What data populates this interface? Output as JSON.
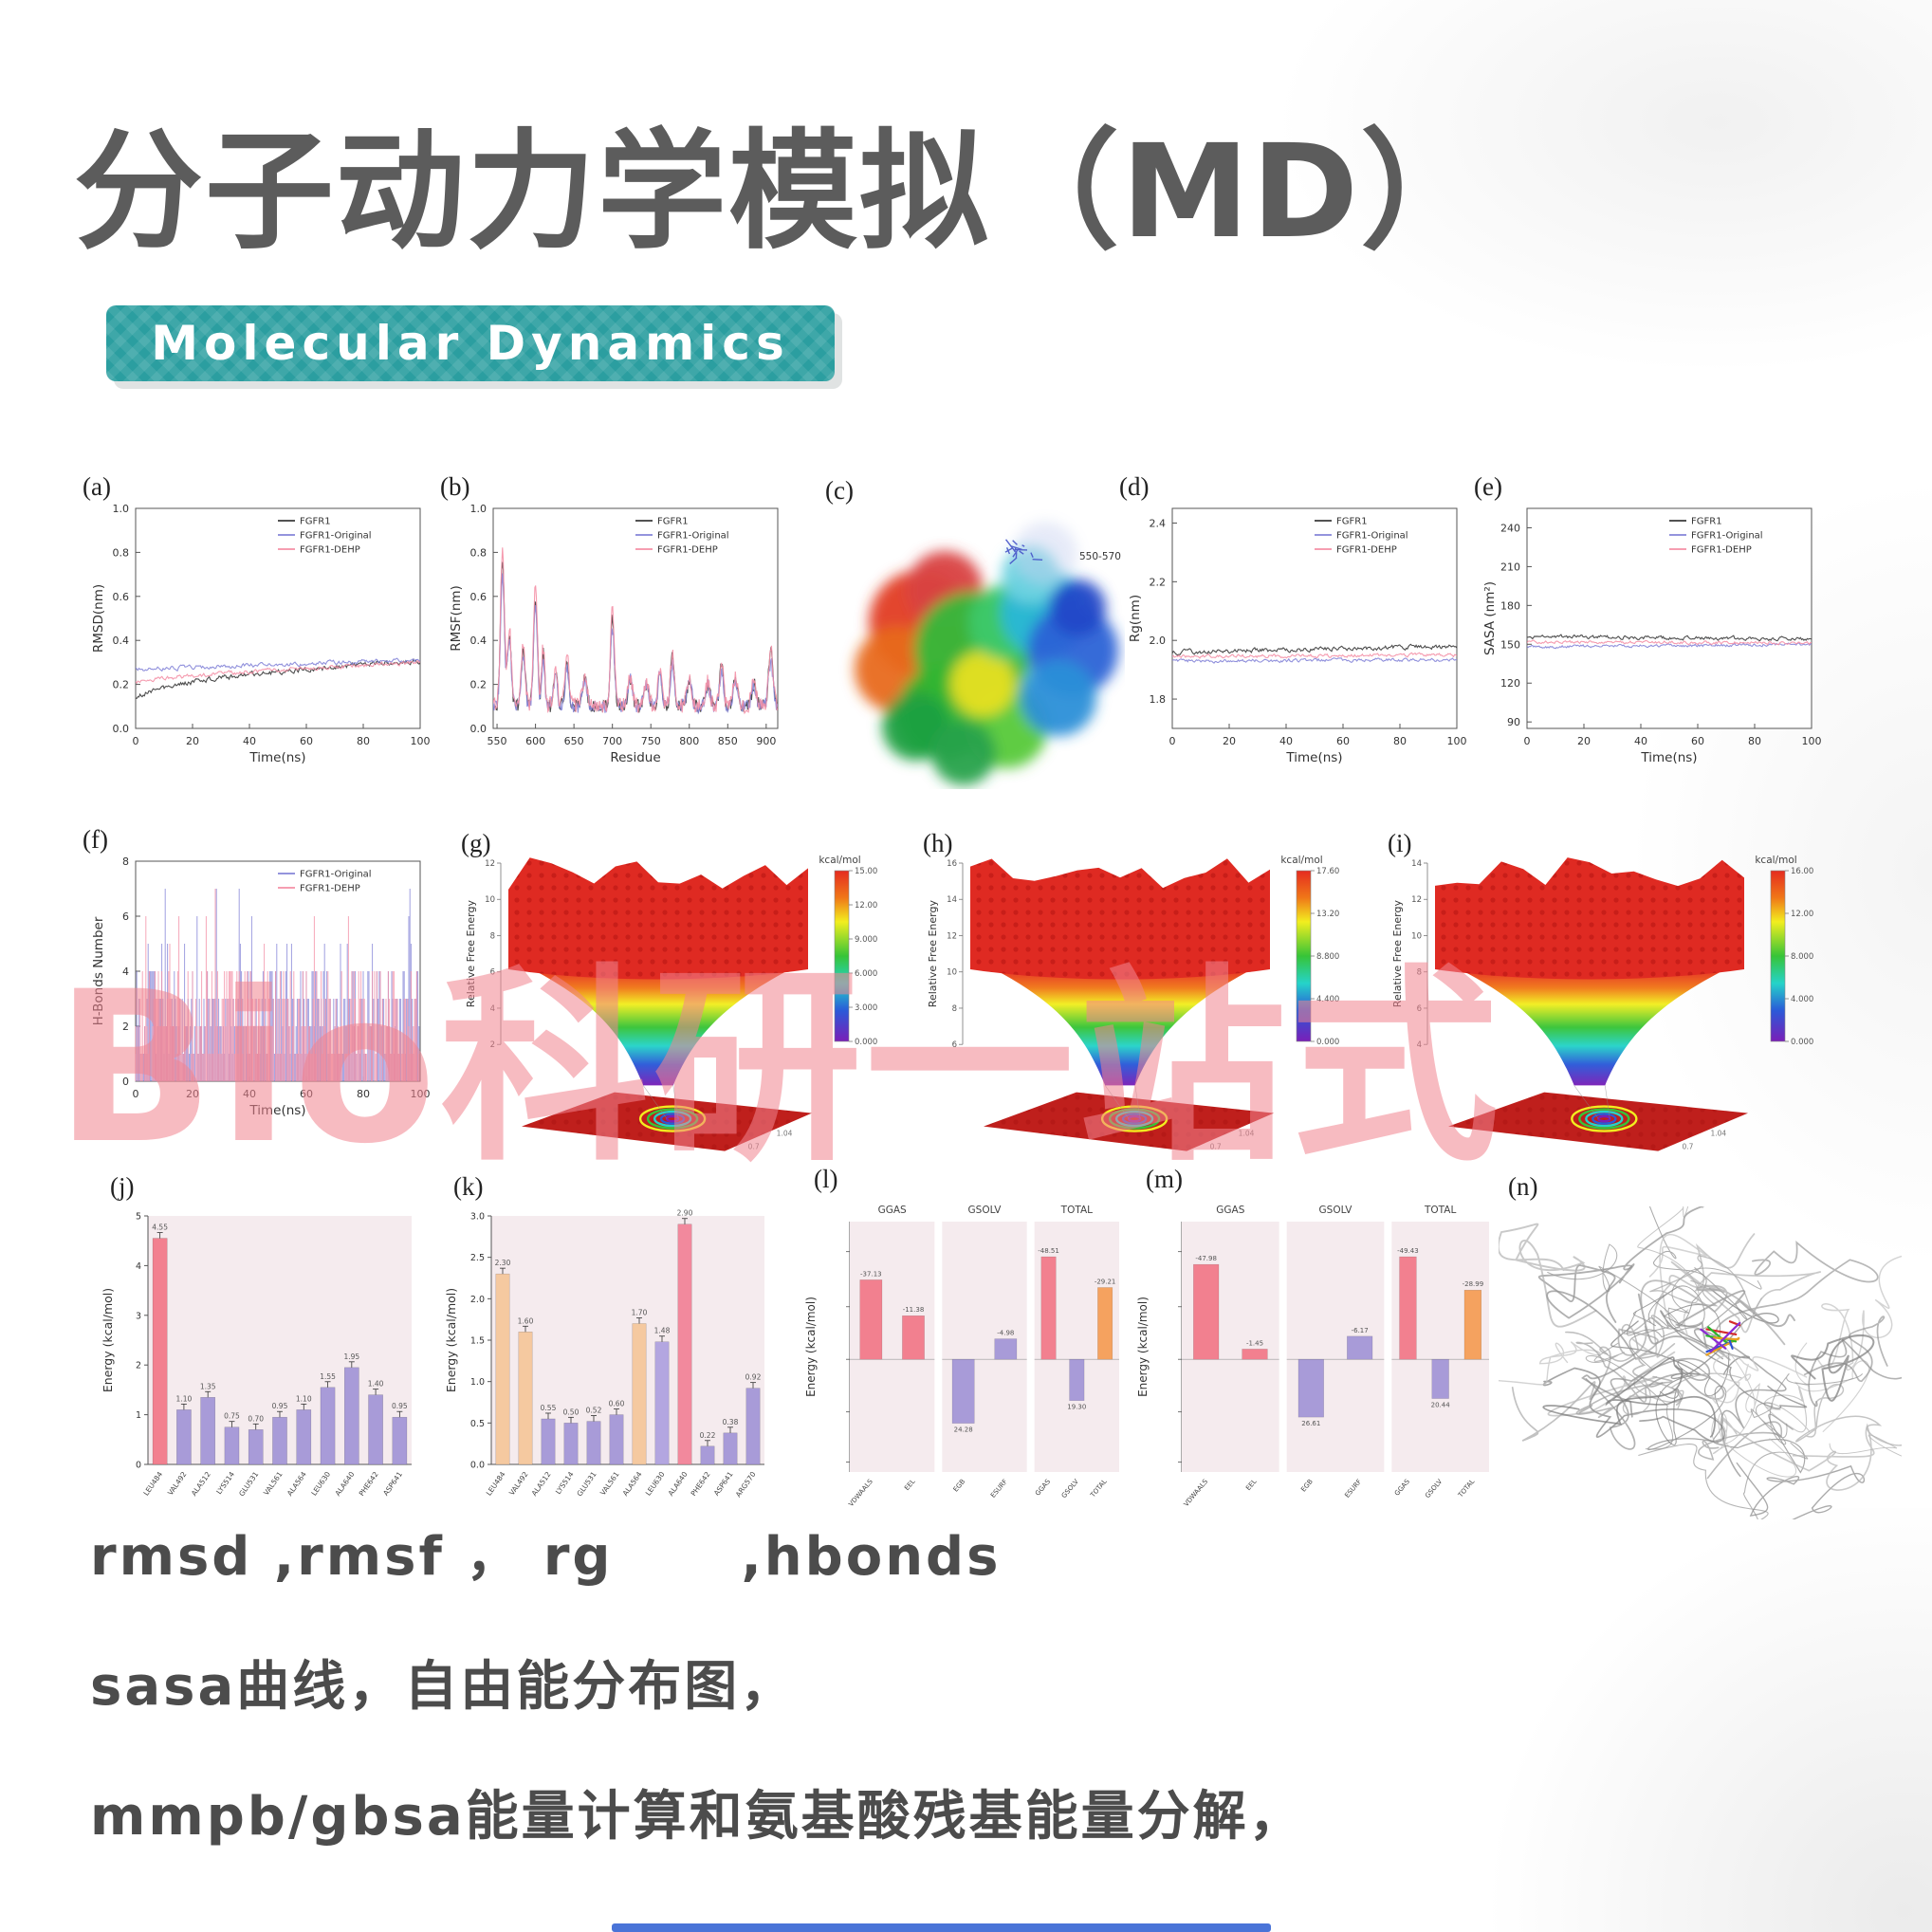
{
  "page": {
    "title": "分子动力学模拟（MD）",
    "badge": "Molecular Dynamics",
    "watermark": "Bio科研一站式",
    "footer_lines": [
      "rmsd ,rmsf ， rg      ,hbonds",
      "sasa曲线，自由能分布图，",
      "mmpb/gbsa能量计算和氨基酸残基能量分解，"
    ]
  },
  "colors": {
    "badge_teal": "#2b9ea0",
    "title_gray": "#5c5c5c",
    "watermark_pink": "#f28490",
    "fgfr1_black": "#3a3a3a",
    "fgfr1_original_blue": "#8585d8",
    "fgfr1_dehp_pink": "#f490a6",
    "bar_pink": "#f2808f",
    "bar_purple": "#a89bd8",
    "bar_peach": "#f5c9a0",
    "bar_orange": "#f5a25f",
    "panel_pink_bg": "#f5ebee"
  },
  "chart_data": [
    {
      "tag": "(a)",
      "type": "line",
      "xlabel": "Time(ns)",
      "ylabel": "RMSD(nm)",
      "xlim": [
        0,
        100
      ],
      "ylim": [
        0,
        1
      ],
      "xticks": [
        0,
        20,
        40,
        60,
        80,
        100
      ],
      "yticks": [
        0,
        0.2,
        0.4,
        0.6,
        0.8,
        1
      ],
      "ydec": 1,
      "legend": [
        {
          "name": "FGFR1",
          "color": "#3a3a3a"
        },
        {
          "name": "FGFR1-Original",
          "color": "#8585d8"
        },
        {
          "name": "FGFR1-DEHP",
          "color": "#f490a6"
        }
      ],
      "series": [
        {
          "name": "FGFR1",
          "color": "#3a3a3a",
          "start": 0.13,
          "end": 0.31,
          "pow": 0.5,
          "noise": 0.022,
          "seed": 7
        },
        {
          "name": "FGFR1-Original",
          "color": "#8585d8",
          "start": 0.27,
          "end": 0.31,
          "pow": 1,
          "noise": 0.018,
          "seed": 19
        },
        {
          "name": "FGFR1-DEHP",
          "color": "#f490a6",
          "start": 0.21,
          "end": 0.3,
          "pow": 0.7,
          "noise": 0.018,
          "seed": 31
        }
      ]
    },
    {
      "tag": "(b)",
      "type": "line",
      "xlabel": "Residue",
      "ylabel": "RMSF(nm)",
      "xlim": [
        545,
        915
      ],
      "ylim": [
        0,
        1
      ],
      "xticks": [
        550,
        600,
        650,
        700,
        750,
        800,
        850,
        900
      ],
      "yticks": [
        0,
        0.2,
        0.4,
        0.6,
        0.8,
        1
      ],
      "ydec": 1,
      "n": 370,
      "legend": [
        {
          "name": "FGFR1",
          "color": "#3a3a3a"
        },
        {
          "name": "FGFR1-Original",
          "color": "#8585d8"
        },
        {
          "name": "FGFR1-DEHP",
          "color": "#f490a6"
        }
      ],
      "series": [
        {
          "name": "FGFR1",
          "color": "#3a3a3a",
          "start": 0.1,
          "end": 0.1,
          "noise": 0.03,
          "seed": 3,
          "sharp": true,
          "peaks": [
            {
              "x": 557,
              "h": 0.66,
              "w": 2.5
            },
            {
              "x": 566,
              "h": 0.32,
              "w": 2.5
            },
            {
              "x": 584,
              "h": 0.26,
              "w": 2.5
            },
            {
              "x": 600,
              "h": 0.5,
              "w": 2.5
            },
            {
              "x": 610,
              "h": 0.24,
              "w": 2
            },
            {
              "x": 626,
              "h": 0.16,
              "w": 2.5
            },
            {
              "x": 641,
              "h": 0.2,
              "w": 2.5
            },
            {
              "x": 664,
              "h": 0.12,
              "w": 3
            },
            {
              "x": 700,
              "h": 0.4,
              "w": 2.5
            },
            {
              "x": 723,
              "h": 0.12,
              "w": 3
            },
            {
              "x": 744,
              "h": 0.1,
              "w": 3
            },
            {
              "x": 762,
              "h": 0.16,
              "w": 2.5
            },
            {
              "x": 778,
              "h": 0.22,
              "w": 2.5
            },
            {
              "x": 800,
              "h": 0.12,
              "w": 3
            },
            {
              "x": 824,
              "h": 0.1,
              "w": 3
            },
            {
              "x": 842,
              "h": 0.18,
              "w": 2.5
            },
            {
              "x": 860,
              "h": 0.12,
              "w": 3
            },
            {
              "x": 884,
              "h": 0.1,
              "w": 3
            },
            {
              "x": 906,
              "h": 0.24,
              "w": 3
            }
          ]
        },
        {
          "name": "FGFR1-Original",
          "color": "#8585d8",
          "start": 0.1,
          "end": 0.1,
          "noise": 0.032,
          "seed": 11,
          "sharp": true,
          "peaks": [
            {
              "x": 557,
              "h": 0.6,
              "w": 2.5
            },
            {
              "x": 566,
              "h": 0.3,
              "w": 2.5
            },
            {
              "x": 584,
              "h": 0.24,
              "w": 2.5
            },
            {
              "x": 600,
              "h": 0.46,
              "w": 2.5
            },
            {
              "x": 610,
              "h": 0.22,
              "w": 2
            },
            {
              "x": 626,
              "h": 0.14,
              "w": 2.5
            },
            {
              "x": 641,
              "h": 0.18,
              "w": 2.5
            },
            {
              "x": 664,
              "h": 0.12,
              "w": 3
            },
            {
              "x": 700,
              "h": 0.36,
              "w": 2.5
            },
            {
              "x": 723,
              "h": 0.12,
              "w": 3
            },
            {
              "x": 744,
              "h": 0.1,
              "w": 3
            },
            {
              "x": 762,
              "h": 0.15,
              "w": 2.5
            },
            {
              "x": 778,
              "h": 0.2,
              "w": 2.5
            },
            {
              "x": 800,
              "h": 0.11,
              "w": 3
            },
            {
              "x": 824,
              "h": 0.1,
              "w": 3
            },
            {
              "x": 842,
              "h": 0.16,
              "w": 2.5
            },
            {
              "x": 860,
              "h": 0.12,
              "w": 3
            },
            {
              "x": 884,
              "h": 0.1,
              "w": 3
            },
            {
              "x": 906,
              "h": 0.2,
              "w": 3
            }
          ]
        },
        {
          "name": "FGFR1-DEHP",
          "color": "#f490a6",
          "start": 0.11,
          "end": 0.1,
          "noise": 0.035,
          "seed": 23,
          "sharp": true,
          "peaks": [
            {
              "x": 557,
              "h": 0.7,
              "w": 2.5
            },
            {
              "x": 566,
              "h": 0.34,
              "w": 2.5
            },
            {
              "x": 584,
              "h": 0.28,
              "w": 2.5
            },
            {
              "x": 600,
              "h": 0.54,
              "w": 2.5
            },
            {
              "x": 610,
              "h": 0.26,
              "w": 2
            },
            {
              "x": 626,
              "h": 0.17,
              "w": 2.5
            },
            {
              "x": 641,
              "h": 0.22,
              "w": 2.5
            },
            {
              "x": 664,
              "h": 0.13,
              "w": 3
            },
            {
              "x": 700,
              "h": 0.44,
              "w": 2.5
            },
            {
              "x": 723,
              "h": 0.13,
              "w": 3
            },
            {
              "x": 744,
              "h": 0.11,
              "w": 3
            },
            {
              "x": 762,
              "h": 0.17,
              "w": 2.5
            },
            {
              "x": 778,
              "h": 0.24,
              "w": 2.5
            },
            {
              "x": 800,
              "h": 0.13,
              "w": 3
            },
            {
              "x": 824,
              "h": 0.11,
              "w": 3
            },
            {
              "x": 842,
              "h": 0.19,
              "w": 2.5
            },
            {
              "x": 860,
              "h": 0.13,
              "w": 3
            },
            {
              "x": 884,
              "h": 0.11,
              "w": 3
            },
            {
              "x": 906,
              "h": 0.26,
              "w": 3
            }
          ]
        }
      ]
    },
    {
      "tag": "(c)",
      "type": "surface",
      "annotation": "550-570"
    },
    {
      "tag": "(d)",
      "type": "line",
      "xlabel": "Time(ns)",
      "ylabel": "Rg(nm)",
      "xlim": [
        0,
        100
      ],
      "ylim": [
        1.7,
        2.45
      ],
      "xticks": [
        0,
        20,
        40,
        60,
        80,
        100
      ],
      "yticks": [
        1.8,
        2.0,
        2.2,
        2.4
      ],
      "ydec": 1,
      "legend": [
        {
          "name": "FGFR1",
          "color": "#3a3a3a"
        },
        {
          "name": "FGFR1-Original",
          "color": "#8585d8"
        },
        {
          "name": "FGFR1-DEHP",
          "color": "#f490a6"
        }
      ],
      "series": [
        {
          "name": "FGFR1",
          "color": "#3a3a3a",
          "start": 1.96,
          "end": 1.98,
          "noise": 0.014,
          "seed": 5
        },
        {
          "name": "FGFR1-Original",
          "color": "#8585d8",
          "start": 1.93,
          "end": 1.935,
          "noise": 0.011,
          "seed": 9
        },
        {
          "name": "FGFR1-DEHP",
          "color": "#f490a6",
          "start": 1.945,
          "end": 1.95,
          "noise": 0.011,
          "seed": 13
        }
      ]
    },
    {
      "tag": "(e)",
      "type": "line",
      "xlabel": "Time(ns)",
      "ylabel": "SASA (nm²)",
      "xlim": [
        0,
        100
      ],
      "ylim": [
        85,
        255
      ],
      "xticks": [
        0,
        20,
        40,
        60,
        80,
        100
      ],
      "yticks": [
        90,
        120,
        150,
        180,
        210,
        240
      ],
      "legend": [
        {
          "name": "FGFR1",
          "color": "#3a3a3a"
        },
        {
          "name": "FGFR1-Original",
          "color": "#8585d8"
        },
        {
          "name": "FGFR1-DEHP",
          "color": "#f490a6"
        }
      ],
      "series": [
        {
          "name": "FGFR1",
          "color": "#3a3a3a",
          "start": 156,
          "end": 154,
          "noise": 2.6,
          "seed": 3
        },
        {
          "name": "FGFR1-Original",
          "color": "#8585d8",
          "start": 148,
          "end": 150,
          "noise": 2.2,
          "seed": 8
        },
        {
          "name": "FGFR1-DEHP",
          "color": "#f490a6",
          "start": 152,
          "end": 151,
          "noise": 2.2,
          "seed": 15
        }
      ]
    },
    {
      "tag": "(f)",
      "type": "hbonds",
      "xlabel": "Time(ns)",
      "ylabel": "H-Bonds Number",
      "xlim": [
        0,
        100
      ],
      "ylim": [
        0,
        8
      ],
      "xticks": [
        0,
        20,
        40,
        60,
        80,
        100
      ],
      "yticks": [
        0,
        2,
        4,
        6,
        8
      ],
      "legend": [
        {
          "name": "FGFR1-Original",
          "color": "#8585d8"
        },
        {
          "name": "FGFR1-DEHP",
          "color": "#f490a6"
        }
      ],
      "series": [
        {
          "name": "FGFR1-Original",
          "color": "#8585d8",
          "mean": 2.4,
          "seed": 21
        },
        {
          "name": "FGFR1-DEHP",
          "color": "#f490a6",
          "mean": 2.0,
          "seed": 34
        }
      ]
    },
    {
      "tag": "(g)",
      "type": "landscape3d",
      "zlabel": "Relative Free Energy",
      "cbar_label": "kcal/mol",
      "cbar_ticks": [
        "15.00",
        "12.00",
        "9.000",
        "6.000",
        "3.000",
        "0.000"
      ],
      "zticks": [
        "12",
        "10",
        "8",
        "6",
        "4",
        "2"
      ],
      "base_ticks": [
        "0.7",
        "1.04"
      ],
      "seed": 41
    },
    {
      "tag": "(h)",
      "type": "landscape3d",
      "zlabel": "Relative Free Energy",
      "cbar_label": "kcal/mol",
      "cbar_ticks": [
        "17.60",
        "13.20",
        "8.800",
        "4.400",
        "0.000"
      ],
      "zticks": [
        "16",
        "14",
        "12",
        "10",
        "8",
        "6"
      ],
      "base_ticks": [
        "0.7",
        "1.04"
      ],
      "seed": 52
    },
    {
      "tag": "(i)",
      "type": "landscape3d",
      "zlabel": "Relative Free Energy",
      "cbar_label": "kcal/mol",
      "cbar_ticks": [
        "16.00",
        "12.00",
        "8.000",
        "4.000",
        "0.000"
      ],
      "zticks": [
        "14",
        "12",
        "10",
        "8",
        "6",
        "4"
      ],
      "base_ticks": [
        "0.7",
        "1.04"
      ],
      "seed": 63
    },
    {
      "tag": "(j)",
      "type": "bar",
      "ylabel": "Energy (kcal/mol)",
      "ylim": [
        0,
        5
      ],
      "yticks": [
        0,
        1,
        2,
        3,
        4,
        5
      ],
      "bg": "#f5ebee",
      "bars": [
        {
          "label": "LEU484",
          "value": 4.55,
          "color": "#f2808f"
        },
        {
          "label": "VAL492",
          "value": 1.1,
          "color": "#a89bd8"
        },
        {
          "label": "ALA512",
          "value": 1.35,
          "color": "#a89bd8"
        },
        {
          "label": "LYS514",
          "value": 0.75,
          "color": "#a89bd8"
        },
        {
          "label": "GLU531",
          "value": 0.7,
          "color": "#a89bd8"
        },
        {
          "label": "VAL561",
          "value": 0.95,
          "color": "#a89bd8"
        },
        {
          "label": "ALA564",
          "value": 1.1,
          "color": "#a89bd8"
        },
        {
          "label": "LEU630",
          "value": 1.55,
          "color": "#a89bd8"
        },
        {
          "label": "ALA640",
          "value": 1.95,
          "color": "#a89bd8"
        },
        {
          "label": "PHE642",
          "value": 1.4,
          "color": "#a89bd8"
        },
        {
          "label": "ASP641",
          "value": 0.95,
          "color": "#a89bd8"
        }
      ]
    },
    {
      "tag": "(k)",
      "type": "bar",
      "ylabel": "Energy (kcal/mol)",
      "ylim": [
        0,
        3
      ],
      "yticks": [
        0,
        0.5,
        1.0,
        1.5,
        2.0,
        2.5,
        3.0
      ],
      "ydec": 1,
      "bg": "#f5ebee",
      "bars": [
        {
          "label": "LEU484",
          "value": 2.3,
          "color": "#f5c9a0"
        },
        {
          "label": "VAL492",
          "value": 1.6,
          "color": "#f5c9a0"
        },
        {
          "label": "ALA512",
          "value": 0.55,
          "color": "#a89bd8"
        },
        {
          "label": "LYS514",
          "value": 0.5,
          "color": "#a89bd8"
        },
        {
          "label": "GLU531",
          "value": 0.52,
          "color": "#a89bd8"
        },
        {
          "label": "VAL561",
          "value": 0.6,
          "color": "#a89bd8"
        },
        {
          "label": "ALA564",
          "value": 1.7,
          "color": "#f5c9a0"
        },
        {
          "label": "LEU630",
          "value": 1.48,
          "color": "#b3a6e0"
        },
        {
          "label": "ALA640",
          "value": 2.9,
          "color": "#f2899d"
        },
        {
          "label": "PHE642",
          "value": 0.22,
          "color": "#a89bd8"
        },
        {
          "label": "ASP641",
          "value": 0.38,
          "color": "#a89bd8"
        },
        {
          "label": "ARG570",
          "value": 0.92,
          "color": "#a89bd8"
        }
      ]
    },
    {
      "tag": "(l)",
      "type": "group-bar",
      "ylabel": "Energy (kcal/mol)",
      "groups": [
        {
          "title": "GGAS",
          "bars": [
            {
              "label": "VDWAALS",
              "text": "-37.13",
              "h": 0.62,
              "color": "#f2808f"
            },
            {
              "label": "EEL",
              "text": "-11.38",
              "h": 0.34,
              "color": "#f2808f"
            }
          ]
        },
        {
          "title": "GSOLV",
          "bars": [
            {
              "label": "EGB",
              "text": "24.28",
              "h": -0.62,
              "color": "#a89bd8"
            },
            {
              "label": "ESURF",
              "text": "-4.98",
              "h": 0.16,
              "color": "#a89bd8"
            }
          ]
        },
        {
          "title": "TOTAL",
          "bars": [
            {
              "label": "GGAS",
              "text": "-48.51",
              "h": 0.8,
              "color": "#f2808f"
            },
            {
              "label": "GSOLV",
              "text": "19.30",
              "h": -0.4,
              "color": "#a89bd8"
            },
            {
              "label": "TOTAL",
              "text": "-29.21",
              "h": 0.56,
              "color": "#f5a25f"
            }
          ]
        }
      ]
    },
    {
      "tag": "(m)",
      "type": "group-bar",
      "ylabel": "Energy (kcal/mol)",
      "groups": [
        {
          "title": "GGAS",
          "bars": [
            {
              "label": "VDWAALS",
              "text": "-47.98",
              "h": 0.74,
              "color": "#f2808f"
            },
            {
              "label": "EEL",
              "text": "-1.45",
              "h": 0.08,
              "color": "#f2808f"
            }
          ]
        },
        {
          "title": "GSOLV",
          "bars": [
            {
              "label": "EGB",
              "text": "26.61",
              "h": -0.56,
              "color": "#a89bd8"
            },
            {
              "label": "ESURF",
              "text": "-6.17",
              "h": 0.18,
              "color": "#a89bd8"
            }
          ]
        },
        {
          "title": "TOTAL",
          "bars": [
            {
              "label": "GGAS",
              "text": "-49.43",
              "h": 0.8,
              "color": "#f2808f"
            },
            {
              "label": "GSOLV",
              "text": "20.44",
              "h": -0.38,
              "color": "#a89bd8"
            },
            {
              "label": "TOTAL",
              "text": "-28.99",
              "h": 0.54,
              "color": "#f5a25f"
            }
          ]
        }
      ]
    },
    {
      "tag": "(n)",
      "type": "ribbon"
    }
  ]
}
